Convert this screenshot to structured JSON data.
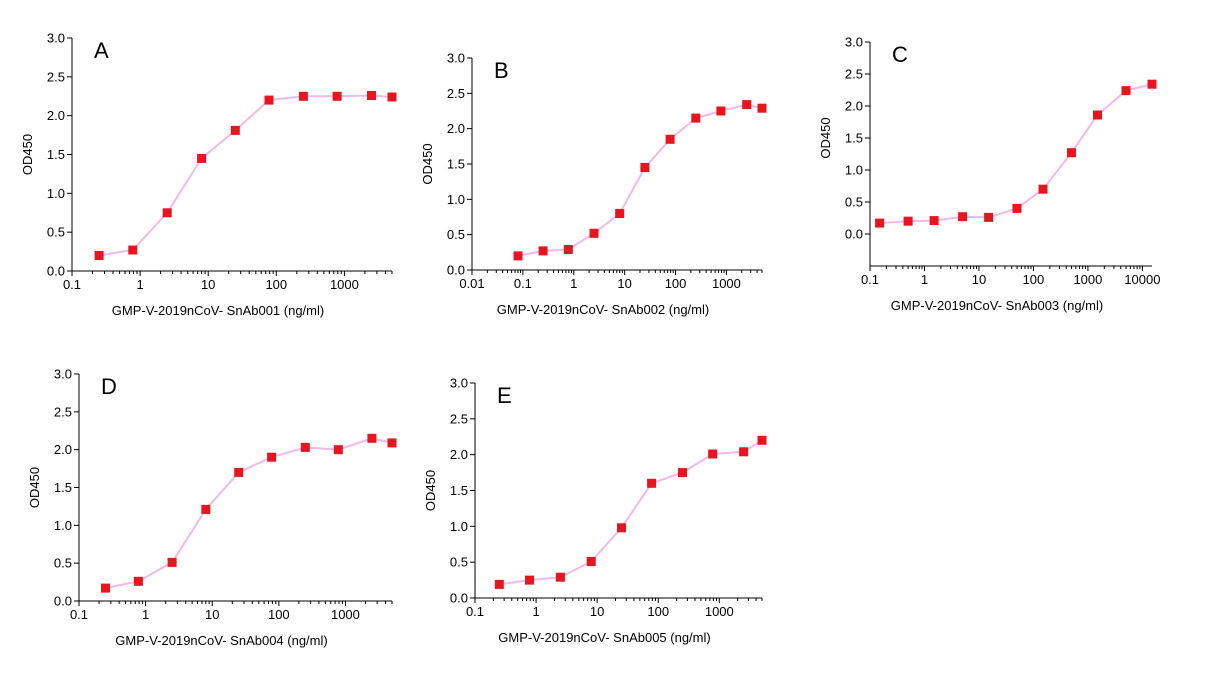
{
  "colors": {
    "line": "#f2b8ee",
    "marker": "#e8141e",
    "axis": "#000000"
  },
  "chart_data": [
    {
      "type": "line",
      "panel_label": "A",
      "xscale": "log",
      "xlabel": "GMP-V-2019nCoV- SnAb001 (ng/ml)",
      "ylabel": "OD450",
      "xlim": [
        0.1,
        5000
      ],
      "ylim": [
        0,
        3.0
      ],
      "xticks": [
        "0.1",
        "1",
        "10",
        "100",
        "1000"
      ],
      "yticks": [
        "0.0",
        "0.5",
        "1.0",
        "1.5",
        "2.0",
        "2.5",
        "3.0"
      ],
      "series": [
        {
          "x": [
            0.25,
            0.78,
            2.5,
            8.0,
            25,
            78,
            250,
            780,
            2500,
            5000
          ],
          "y": [
            0.2,
            0.27,
            0.75,
            1.45,
            1.81,
            2.2,
            2.25,
            2.25,
            2.26,
            2.24
          ]
        }
      ]
    },
    {
      "type": "line",
      "panel_label": "B",
      "xscale": "log",
      "xlabel": "GMP-V-2019nCoV- SnAb002 (ng/ml)",
      "ylabel": "OD450",
      "xlim": [
        0.01,
        5000
      ],
      "ylim": [
        0,
        3.0
      ],
      "xticks": [
        "0.01",
        "0.1",
        "1",
        "10",
        "100",
        "1000"
      ],
      "yticks": [
        "0.0",
        "0.5",
        "1.0",
        "1.5",
        "2.0",
        "2.5",
        "3.0"
      ],
      "series": [
        {
          "x": [
            0.08,
            0.25,
            0.78,
            2.5,
            8.0,
            25,
            78,
            250,
            780,
            2500,
            5000
          ],
          "y": [
            0.2,
            0.27,
            0.29,
            0.52,
            0.8,
            1.45,
            1.85,
            2.15,
            2.25,
            2.34,
            2.29
          ]
        }
      ]
    },
    {
      "type": "line",
      "panel_label": "C",
      "xscale": "log",
      "xlabel": "GMP-V-2019nCoV- SnAb003 (ng/ml)",
      "ylabel": "OD450",
      "xlim": [
        0.1,
        15000
      ],
      "ylim": [
        -0.5,
        3.0
      ],
      "xticks": [
        "0.1",
        "1",
        "10",
        "100",
        "1000",
        "10000"
      ],
      "yticks": [
        "0.0",
        "0.5",
        "1.0",
        "1.5",
        "2.0",
        "2.5",
        "3.0"
      ],
      "series": [
        {
          "x": [
            0.15,
            0.5,
            1.5,
            5,
            15,
            50,
            150,
            500,
            1500,
            5000,
            15000
          ],
          "y": [
            0.17,
            0.2,
            0.21,
            0.27,
            0.26,
            0.4,
            0.7,
            1.27,
            1.86,
            2.24,
            2.34
          ]
        }
      ]
    },
    {
      "type": "line",
      "panel_label": "D",
      "xscale": "log",
      "xlabel": "GMP-V-2019nCoV- SnAb004 (ng/ml)",
      "ylabel": "OD450",
      "xlim": [
        0.1,
        5000
      ],
      "ylim": [
        0,
        3.0
      ],
      "xticks": [
        "0.1",
        "1",
        "10",
        "100",
        "1000"
      ],
      "yticks": [
        "0.0",
        "0.5",
        "1.0",
        "1.5",
        "2.0",
        "2.5",
        "3.0"
      ],
      "series": [
        {
          "x": [
            0.25,
            0.78,
            2.5,
            8.0,
            25,
            78,
            250,
            780,
            2500,
            5000
          ],
          "y": [
            0.17,
            0.26,
            0.51,
            1.21,
            1.7,
            1.9,
            2.03,
            2.0,
            2.15,
            2.09
          ]
        }
      ]
    },
    {
      "type": "line",
      "panel_label": "E",
      "xscale": "log",
      "xlabel": "GMP-V-2019nCoV- SnAb005 (ng/ml)",
      "ylabel": "OD450",
      "xlim": [
        0.1,
        5000
      ],
      "ylim": [
        0,
        3.0
      ],
      "xticks": [
        "0.1",
        "1",
        "10",
        "100",
        "1000"
      ],
      "yticks": [
        "0.0",
        "0.5",
        "1.0",
        "1.5",
        "2.0",
        "2.5",
        "3.0"
      ],
      "series": [
        {
          "x": [
            0.25,
            0.78,
            2.5,
            8.0,
            25,
            78,
            250,
            780,
            2500,
            5000
          ],
          "y": [
            0.19,
            0.25,
            0.29,
            0.51,
            0.98,
            1.6,
            1.75,
            2.01,
            2.04,
            2.2
          ]
        }
      ]
    }
  ]
}
